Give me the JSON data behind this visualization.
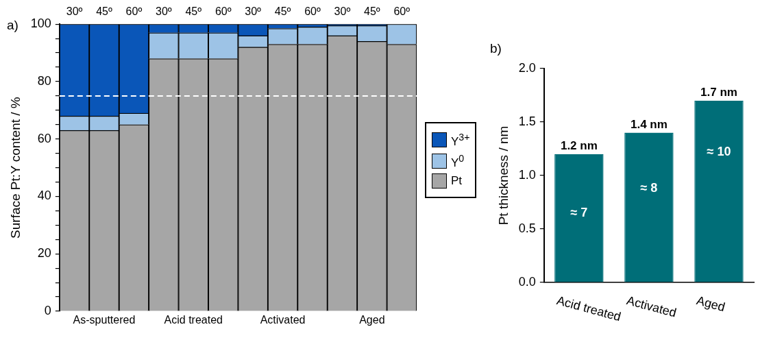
{
  "chart_data": [
    {
      "type": "bar",
      "title": "a)",
      "stacked": true,
      "ylabel": "Surface Pt:Y content / %",
      "categories": [
        "30º",
        "45º",
        "60º",
        "30º",
        "45º",
        "60º",
        "30º",
        "45º",
        "60º",
        "30º",
        "45º",
        "60º"
      ],
      "series": [
        {
          "name": "Pt",
          "color": "#a6a6a6",
          "values": [
            63,
            63,
            65,
            88,
            88,
            88,
            92,
            93,
            93,
            96,
            94,
            93
          ]
        },
        {
          "name": "Y$^{0}$",
          "color": "#9dc3e6",
          "values": [
            5,
            5,
            4,
            9,
            9,
            9,
            4,
            5.5,
            6,
            3.5,
            5.5,
            7
          ]
        },
        {
          "name": "Y$^{3+}$",
          "color": "#0a56b8",
          "values": [
            32,
            32,
            31,
            3,
            3,
            3,
            4,
            1.5,
            1,
            0.5,
            0.5,
            0
          ]
        }
      ],
      "ylim": [
        0,
        100
      ],
      "yticks": [
        0,
        {
          "value": 5,
          "label": null
        },
        {
          "value": 10,
          "label": null
        },
        {
          "value": 15,
          "label": null
        },
        20,
        {
          "value": 25,
          "label": null
        },
        {
          "value": 30,
          "label": null
        },
        {
          "value": 35,
          "label": null
        },
        40,
        {
          "value": 45,
          "label": null
        },
        {
          "value": 50,
          "label": null
        },
        {
          "value": 55,
          "label": null
        },
        60,
        {
          "value": 65,
          "label": null
        },
        {
          "value": 70,
          "label": null
        },
        {
          "value": 75,
          "label": null
        },
        80,
        {
          "value": 85,
          "label": null
        },
        {
          "value": 90,
          "label": null
        },
        {
          "value": 95,
          "label": null
        },
        100
      ],
      "ref_lines": [
        {
          "axis": "y",
          "value": 75,
          "label": null,
          "color": "#ffffff",
          "line_style": "dashed"
        }
      ],
      "annotations": [
        "As-sputtered",
        "Acid treated",
        "Activated",
        "Aged"
      ],
      "legend": "right",
      "grid": false
    },
    {
      "type": "bar",
      "title": "b)",
      "ylabel": "Pt thickness / nm",
      "categories": [
        "Acid treated",
        "Activated",
        "Aged"
      ],
      "values": [
        1.2,
        1.4,
        1.7
      ],
      "color": "#006e78",
      "value_labels": [
        "1.2 nm",
        "1.4 nm",
        "1.7 nm"
      ],
      "ylim": [
        0,
        2
      ],
      "yticks": [
        {
          "value": 0,
          "label": "0.0"
        },
        0.5,
        {
          "value": 1,
          "label": "1.0"
        },
        1.5,
        {
          "value": 2,
          "label": "2.0"
        }
      ],
      "annotations": [
        {
          "text": "≈ 7",
          "x": "Acid treated",
          "y": 0.65
        },
        {
          "text": "≈ 8",
          "x": "Activated",
          "y": 0.88
        },
        {
          "text": "≈ 10",
          "x": "Aged",
          "y": 1.22
        }
      ],
      "grid": false
    }
  ]
}
